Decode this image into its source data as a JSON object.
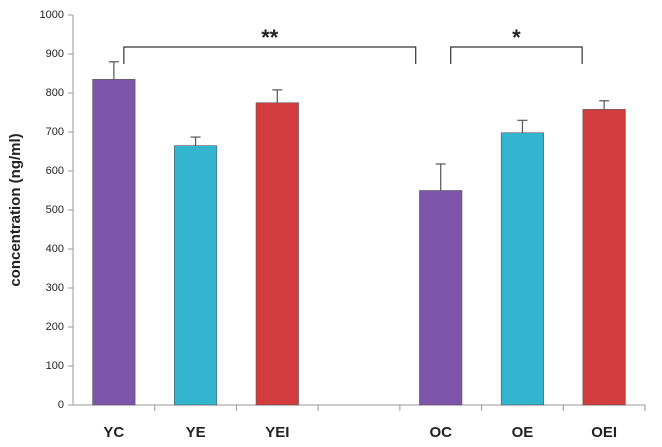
{
  "chart_data": {
    "type": "bar",
    "y_label": "concentration (ng/ml)",
    "categories": [
      "YC",
      "YE",
      "YEI",
      null,
      "OC",
      "OE",
      "OEI"
    ],
    "values": [
      835,
      665,
      775,
      null,
      550,
      698,
      758
    ],
    "errors": [
      45,
      22,
      33,
      null,
      68,
      32,
      22
    ],
    "colors": [
      "#7d55a9",
      "#33b5cf",
      "#d33c3c",
      null,
      "#7d55a9",
      "#33b5cf",
      "#d33c3c"
    ],
    "ylim": [
      0,
      1000
    ],
    "yticks": [
      0,
      100,
      200,
      300,
      400,
      500,
      600,
      700,
      800,
      900,
      1000
    ],
    "grid": false,
    "annotations": [
      {
        "text": "**",
        "between": [
          "YC",
          "OC"
        ]
      },
      {
        "text": "*",
        "between": [
          "OC",
          "OEI"
        ]
      }
    ]
  }
}
